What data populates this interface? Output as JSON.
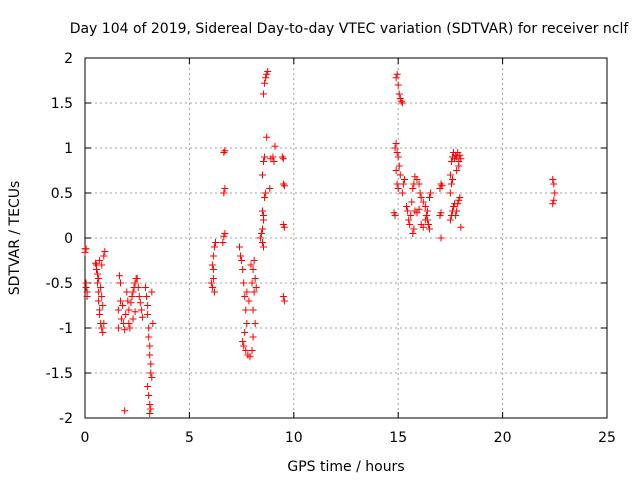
{
  "chart_data": {
    "type": "scatter",
    "title": "Day 104 of 2019, Sidereal Day-to-day VTEC variation (SDTVAR) for receiver nclf",
    "xlabel": "GPS time / hours",
    "ylabel": "SDTVAR / TECUs",
    "xlim": [
      0,
      25
    ],
    "ylim": [
      -2,
      2
    ],
    "x_ticks": [
      0,
      5,
      10,
      15,
      20,
      25
    ],
    "x_tick_labels": [
      "0",
      "5",
      "10",
      "15",
      "20",
      "25"
    ],
    "y_ticks": [
      -2,
      -1.5,
      -1,
      -0.5,
      0,
      0.5,
      1,
      1.5,
      2
    ],
    "y_tick_labels": [
      "-2",
      "-1.5",
      "-1",
      "-0.5",
      "0",
      "0.5",
      "1",
      "1.5",
      "2"
    ],
    "grid": true,
    "marker": "+",
    "color": "#ff0000",
    "series": [
      {
        "name": "SDTVAR",
        "points": [
          [
            0.0,
            -0.12
          ],
          [
            0.0,
            -0.16
          ],
          [
            0.05,
            -0.5
          ],
          [
            0.05,
            -0.55
          ],
          [
            0.1,
            -0.6
          ],
          [
            0.1,
            -0.65
          ],
          [
            0.05,
            -0.12
          ],
          [
            0.5,
            -0.28
          ],
          [
            0.55,
            -0.3
          ],
          [
            0.55,
            -0.35
          ],
          [
            0.6,
            -0.4
          ],
          [
            0.6,
            -0.5
          ],
          [
            0.65,
            -0.6
          ],
          [
            0.65,
            -0.7
          ],
          [
            0.7,
            -0.8
          ],
          [
            0.7,
            -0.85
          ],
          [
            0.75,
            -0.95
          ],
          [
            0.8,
            -1.0
          ],
          [
            0.85,
            -1.05
          ],
          [
            0.9,
            -0.95
          ],
          [
            0.75,
            -0.55
          ],
          [
            0.8,
            -0.65
          ],
          [
            0.85,
            -0.75
          ],
          [
            0.9,
            -0.2
          ],
          [
            0.95,
            -0.15
          ],
          [
            0.7,
            -0.25
          ],
          [
            0.8,
            -0.3
          ],
          [
            0.65,
            -0.45
          ],
          [
            1.6,
            -0.8
          ],
          [
            1.6,
            -1.0
          ],
          [
            1.7,
            -0.7
          ],
          [
            1.8,
            -0.75
          ],
          [
            1.65,
            -0.42
          ],
          [
            1.7,
            -0.5
          ],
          [
            1.85,
            -0.95
          ],
          [
            1.9,
            -1.02
          ],
          [
            1.75,
            -0.9
          ],
          [
            1.95,
            -0.85
          ],
          [
            2.0,
            -0.6
          ],
          [
            2.05,
            -0.7
          ],
          [
            2.1,
            -0.8
          ],
          [
            2.1,
            -0.95
          ],
          [
            2.15,
            -1.0
          ],
          [
            2.2,
            -0.72
          ],
          [
            2.25,
            -0.65
          ],
          [
            2.3,
            -0.6
          ],
          [
            2.35,
            -0.55
          ],
          [
            2.4,
            -0.5
          ],
          [
            2.45,
            -0.45
          ],
          [
            2.5,
            -0.45
          ],
          [
            2.55,
            -0.55
          ],
          [
            2.6,
            -0.65
          ],
          [
            2.65,
            -0.72
          ],
          [
            2.7,
            -0.8
          ],
          [
            2.75,
            -0.88
          ],
          [
            2.3,
            -0.9
          ],
          [
            2.4,
            -0.82
          ],
          [
            1.9,
            -1.92
          ],
          [
            2.9,
            -0.55
          ],
          [
            2.95,
            -0.65
          ],
          [
            3.0,
            -0.75
          ],
          [
            3.0,
            -0.85
          ],
          [
            3.05,
            -1.0
          ],
          [
            3.05,
            -1.1
          ],
          [
            3.1,
            -1.2
          ],
          [
            3.1,
            -1.3
          ],
          [
            3.15,
            -1.4
          ],
          [
            3.15,
            -1.5
          ],
          [
            3.2,
            -1.55
          ],
          [
            3.2,
            -0.6
          ],
          [
            3.25,
            -0.95
          ],
          [
            3.0,
            -1.65
          ],
          [
            3.05,
            -1.75
          ],
          [
            3.1,
            -1.85
          ],
          [
            3.15,
            -1.9
          ],
          [
            3.1,
            -1.95
          ],
          [
            6.05,
            -0.5
          ],
          [
            6.1,
            -0.55
          ],
          [
            6.15,
            -0.45
          ],
          [
            6.1,
            -0.3
          ],
          [
            6.15,
            -0.2
          ],
          [
            6.2,
            -0.1
          ],
          [
            6.25,
            -0.05
          ],
          [
            6.15,
            -0.35
          ],
          [
            6.2,
            -0.6
          ],
          [
            6.6,
            -0.05
          ],
          [
            6.65,
            0.02
          ],
          [
            6.7,
            0.05
          ],
          [
            6.65,
            0.5
          ],
          [
            6.7,
            0.55
          ],
          [
            6.65,
            0.95
          ],
          [
            6.7,
            0.97
          ],
          [
            7.4,
            -0.1
          ],
          [
            7.45,
            -0.2
          ],
          [
            7.5,
            -0.25
          ],
          [
            7.55,
            -0.35
          ],
          [
            7.6,
            -0.5
          ],
          [
            7.65,
            -0.65
          ],
          [
            7.7,
            -0.8
          ],
          [
            7.75,
            -0.95
          ],
          [
            7.55,
            -1.15
          ],
          [
            7.6,
            -1.2
          ],
          [
            7.7,
            -1.25
          ],
          [
            7.8,
            -1.3
          ],
          [
            7.9,
            -1.32
          ],
          [
            8.0,
            -1.25
          ],
          [
            8.05,
            -1.1
          ],
          [
            7.65,
            -1.05
          ],
          [
            7.75,
            -0.6
          ],
          [
            7.85,
            -0.7
          ],
          [
            7.95,
            -0.3
          ],
          [
            8.05,
            -0.35
          ],
          [
            8.15,
            -0.45
          ],
          [
            8.2,
            -0.55
          ],
          [
            8.0,
            -0.5
          ],
          [
            8.1,
            -0.25
          ],
          [
            8.05,
            -0.8
          ],
          [
            8.15,
            -0.95
          ],
          [
            8.1,
            -0.6
          ],
          [
            8.4,
            0.0
          ],
          [
            8.45,
            0.05
          ],
          [
            8.5,
            0.1
          ],
          [
            8.55,
            0.2
          ],
          [
            8.5,
            0.3
          ],
          [
            8.6,
            0.45
          ],
          [
            8.65,
            0.5
          ],
          [
            8.55,
            0.25
          ],
          [
            8.5,
            -0.05
          ],
          [
            8.55,
            -0.1
          ],
          [
            8.5,
            0.7
          ],
          [
            8.55,
            0.85
          ],
          [
            8.6,
            0.9
          ],
          [
            8.7,
            1.12
          ],
          [
            8.55,
            1.6
          ],
          [
            8.6,
            1.72
          ],
          [
            8.65,
            1.78
          ],
          [
            8.7,
            1.82
          ],
          [
            8.75,
            1.85
          ],
          [
            8.9,
            0.88
          ],
          [
            9.0,
            0.9
          ],
          [
            9.05,
            0.85
          ],
          [
            9.1,
            1.02
          ],
          [
            8.85,
            0.55
          ],
          [
            9.45,
            0.9
          ],
          [
            9.5,
            0.88
          ],
          [
            9.5,
            0.6
          ],
          [
            9.55,
            0.58
          ],
          [
            9.5,
            0.15
          ],
          [
            9.55,
            0.12
          ],
          [
            9.5,
            -0.65
          ],
          [
            9.55,
            -0.7
          ],
          [
            14.8,
            0.28
          ],
          [
            14.85,
            0.25
          ],
          [
            14.9,
            1.78
          ],
          [
            14.95,
            1.82
          ],
          [
            15.0,
            1.7
          ],
          [
            15.05,
            1.6
          ],
          [
            15.1,
            1.55
          ],
          [
            15.15,
            1.52
          ],
          [
            15.2,
            1.5
          ],
          [
            14.85,
            1.0
          ],
          [
            14.9,
            1.05
          ],
          [
            14.95,
            0.95
          ],
          [
            15.0,
            0.9
          ],
          [
            15.05,
            0.8
          ],
          [
            15.1,
            0.7
          ],
          [
            14.9,
            0.75
          ],
          [
            14.95,
            0.6
          ],
          [
            15.0,
            0.55
          ],
          [
            15.2,
            0.5
          ],
          [
            15.25,
            0.6
          ],
          [
            15.3,
            0.65
          ],
          [
            15.4,
            0.35
          ],
          [
            15.45,
            0.3
          ],
          [
            15.5,
            0.2
          ],
          [
            15.55,
            0.15
          ],
          [
            15.6,
            0.25
          ],
          [
            15.65,
            0.4
          ],
          [
            15.7,
            0.55
          ],
          [
            15.75,
            0.6
          ],
          [
            15.8,
            0.68
          ],
          [
            15.9,
            0.65
          ],
          [
            16.0,
            0.6
          ],
          [
            16.05,
            0.5
          ],
          [
            16.1,
            0.45
          ],
          [
            16.2,
            0.4
          ],
          [
            16.3,
            0.35
          ],
          [
            16.35,
            0.25
          ],
          [
            16.4,
            0.2
          ],
          [
            16.45,
            0.15
          ],
          [
            16.5,
            0.1
          ],
          [
            15.8,
            0.3
          ],
          [
            15.9,
            0.28
          ],
          [
            16.0,
            0.32
          ],
          [
            16.1,
            0.15
          ],
          [
            16.2,
            0.12
          ],
          [
            16.3,
            0.2
          ],
          [
            16.4,
            0.3
          ],
          [
            16.5,
            0.45
          ],
          [
            16.55,
            0.5
          ],
          [
            15.7,
            0.05
          ],
          [
            15.75,
            0.1
          ],
          [
            17.0,
            0.55
          ],
          [
            17.05,
            0.6
          ],
          [
            17.1,
            0.58
          ],
          [
            17.0,
            0.25
          ],
          [
            17.05,
            0.28
          ],
          [
            17.05,
            0.0
          ],
          [
            17.5,
            0.7
          ],
          [
            17.55,
            0.85
          ],
          [
            17.6,
            0.9
          ],
          [
            17.65,
            0.95
          ],
          [
            17.7,
            0.88
          ],
          [
            17.75,
            0.92
          ],
          [
            17.8,
            0.9
          ],
          [
            17.85,
            0.95
          ],
          [
            17.9,
            0.85
          ],
          [
            17.95,
            0.92
          ],
          [
            18.0,
            0.88
          ],
          [
            17.5,
            0.5
          ],
          [
            17.55,
            0.6
          ],
          [
            17.6,
            0.65
          ],
          [
            17.8,
            0.75
          ],
          [
            17.9,
            0.8
          ],
          [
            17.5,
            0.2
          ],
          [
            17.55,
            0.25
          ],
          [
            17.6,
            0.3
          ],
          [
            17.65,
            0.35
          ],
          [
            17.7,
            0.38
          ],
          [
            17.75,
            0.25
          ],
          [
            17.8,
            0.3
          ],
          [
            17.85,
            0.38
          ],
          [
            17.9,
            0.42
          ],
          [
            17.95,
            0.45
          ],
          [
            18.0,
            0.12
          ],
          [
            22.4,
            0.65
          ],
          [
            22.45,
            0.6
          ],
          [
            22.5,
            0.5
          ],
          [
            22.45,
            0.42
          ],
          [
            22.4,
            0.38
          ]
        ]
      }
    ]
  }
}
